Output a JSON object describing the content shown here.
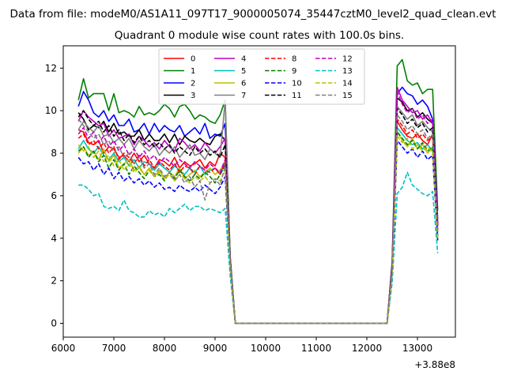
{
  "chart_data": {
    "type": "line",
    "suptitle": "Data from file: modeM0/AS1A11_097T17_9000005074_35447cztM0_level2_quad_clean.evt",
    "title": "Quadrant 0 module wise count rates with 100.0s bins.",
    "xlabel": "",
    "ylabel": "",
    "x_offset_label": "+3.88e8",
    "xlim": [
      6000,
      13750
    ],
    "ylim": [
      -0.65,
      13.05
    ],
    "x_ticks": [
      6000,
      7000,
      8000,
      9000,
      10000,
      11000,
      12000,
      13000
    ],
    "y_ticks": [
      0,
      2,
      4,
      6,
      8,
      10,
      12
    ],
    "x": [
      6300,
      6400,
      6500,
      6600,
      6700,
      6800,
      6900,
      7000,
      7100,
      7200,
      7300,
      7400,
      7500,
      7600,
      7700,
      7800,
      7900,
      8000,
      8100,
      8200,
      8300,
      8400,
      8500,
      8600,
      8700,
      8800,
      8900,
      9000,
      9100,
      9200,
      9300,
      9400,
      9500,
      9600,
      9700,
      9800,
      9900,
      10000,
      10100,
      10200,
      10300,
      10400,
      10500,
      10600,
      10700,
      10800,
      10900,
      11000,
      11100,
      11200,
      11300,
      11400,
      11500,
      11600,
      11700,
      11800,
      11900,
      12000,
      12100,
      12200,
      12300,
      12400,
      12500,
      12600,
      12700,
      12800,
      12900,
      13000,
      13100,
      13200,
      13300,
      13400
    ],
    "legend": {
      "location": "upper center",
      "columns": 4
    },
    "series": [
      {
        "name": "0",
        "color": "#ff0000",
        "dash": "solid",
        "values": [
          9.1,
          9.0,
          8.5,
          8.4,
          8.6,
          8.0,
          8.3,
          8.2,
          7.8,
          7.9,
          7.6,
          8.0,
          7.6,
          7.9,
          7.5,
          7.3,
          7.7,
          7.6,
          7.4,
          7.8,
          7.3,
          7.6,
          7.4,
          7.5,
          7.7,
          7.3,
          7.6,
          7.4,
          8.0,
          7.8,
          2.9,
          0,
          0,
          0,
          0,
          0,
          0,
          0,
          0,
          0,
          0,
          0,
          0,
          0,
          0,
          0,
          0,
          0,
          0,
          0,
          0,
          0,
          0,
          0,
          0,
          0,
          0,
          0,
          0,
          0,
          0,
          0,
          2.5,
          9.5,
          9.1,
          8.8,
          8.7,
          8.9,
          8.6,
          8.4,
          8.9,
          4.3
        ]
      },
      {
        "name": "1",
        "color": "#008000",
        "dash": "solid",
        "values": [
          10.5,
          11.5,
          10.6,
          10.8,
          10.8,
          10.8,
          10.0,
          10.8,
          9.9,
          10.0,
          9.9,
          9.7,
          10.2,
          9.8,
          9.9,
          9.8,
          10.0,
          10.3,
          10.1,
          9.7,
          10.2,
          10.3,
          10.0,
          9.6,
          9.8,
          9.7,
          9.5,
          9.4,
          9.8,
          10.5,
          3.1,
          0,
          0,
          0,
          0,
          0,
          0,
          0,
          0,
          0,
          0,
          0,
          0,
          0,
          0,
          0,
          0,
          0,
          0,
          0,
          0,
          0,
          0,
          0,
          0,
          0,
          0,
          0,
          0,
          0,
          0,
          0,
          2.9,
          12.1,
          12.4,
          11.4,
          11.2,
          11.3,
          10.8,
          11.0,
          11.0,
          5.3
        ]
      },
      {
        "name": "2",
        "color": "#0000ff",
        "dash": "solid",
        "values": [
          10.2,
          10.9,
          10.5,
          9.9,
          9.7,
          10.0,
          9.5,
          9.8,
          9.3,
          9.3,
          9.6,
          9.0,
          9.1,
          9.4,
          8.9,
          9.4,
          9.0,
          9.3,
          9.1,
          9.0,
          9.3,
          8.8,
          9.0,
          9.2,
          8.9,
          9.4,
          8.7,
          8.9,
          8.8,
          9.4,
          3.1,
          0,
          0,
          0,
          0,
          0,
          0,
          0,
          0,
          0,
          0,
          0,
          0,
          0,
          0,
          0,
          0,
          0,
          0,
          0,
          0,
          0,
          0,
          0,
          0,
          0,
          0,
          0,
          0,
          0,
          0,
          0,
          2.8,
          10.8,
          11.1,
          10.8,
          10.7,
          10.3,
          10.5,
          10.2,
          9.6,
          4.9
        ]
      },
      {
        "name": "3",
        "color": "#000000",
        "dash": "solid",
        "values": [
          9.9,
          9.6,
          9.1,
          9.3,
          9.2,
          9.5,
          9.0,
          9.4,
          8.9,
          9.0,
          8.8,
          8.8,
          9.1,
          8.6,
          8.9,
          8.6,
          8.6,
          8.9,
          8.5,
          8.9,
          8.4,
          8.8,
          8.6,
          8.5,
          8.7,
          8.5,
          8.4,
          8.8,
          8.9,
          8.6,
          2.9,
          0,
          0,
          0,
          0,
          0,
          0,
          0,
          0,
          0,
          0,
          0,
          0,
          0,
          0,
          0,
          0,
          0,
          0,
          0,
          0,
          0,
          0,
          0,
          0,
          0,
          0,
          0,
          0,
          0,
          0,
          0,
          2.6,
          10.6,
          10.4,
          10.0,
          10.1,
          9.7,
          9.9,
          9.6,
          9.4,
          4.6
        ]
      },
      {
        "name": "4",
        "color": "#bf00bf",
        "dash": "solid",
        "values": [
          9.5,
          10.0,
          9.7,
          9.5,
          9.3,
          9.4,
          8.8,
          9.1,
          8.7,
          8.8,
          8.9,
          8.4,
          8.8,
          8.6,
          8.3,
          8.5,
          8.2,
          8.6,
          8.3,
          8.1,
          8.7,
          8.5,
          8.2,
          8.4,
          8.1,
          8.5,
          8.2,
          8.0,
          8.3,
          8.7,
          2.9,
          0,
          0,
          0,
          0,
          0,
          0,
          0,
          0,
          0,
          0,
          0,
          0,
          0,
          0,
          0,
          0,
          0,
          0,
          0,
          0,
          0,
          0,
          0,
          0,
          0,
          0,
          0,
          0,
          0,
          0,
          0,
          2.7,
          11.1,
          10.5,
          10.2,
          9.9,
          10.0,
          9.6,
          9.8,
          9.4,
          4.7
        ]
      },
      {
        "name": "5",
        "color": "#00bfbf",
        "dash": "solid",
        "values": [
          8.2,
          8.6,
          8.2,
          8.0,
          8.3,
          7.9,
          7.7,
          8.0,
          7.6,
          7.8,
          7.4,
          7.7,
          7.3,
          7.6,
          7.5,
          7.2,
          7.5,
          7.3,
          7.1,
          7.4,
          7.2,
          7.0,
          7.3,
          7.1,
          7.4,
          7.0,
          7.2,
          7.3,
          7.0,
          7.5,
          2.8,
          0,
          0,
          0,
          0,
          0,
          0,
          0,
          0,
          0,
          0,
          0,
          0,
          0,
          0,
          0,
          0,
          0,
          0,
          0,
          0,
          0,
          0,
          0,
          0,
          0,
          0,
          0,
          0,
          0,
          0,
          0,
          2.4,
          9.2,
          8.9,
          8.6,
          8.4,
          8.5,
          8.2,
          8.4,
          8.1,
          4.1
        ]
      },
      {
        "name": "6",
        "color": "#bfbf00",
        "dash": "solid",
        "values": [
          8.0,
          8.3,
          7.9,
          8.1,
          7.7,
          8.2,
          7.6,
          7.9,
          7.3,
          7.5,
          7.7,
          7.2,
          7.4,
          7.0,
          7.3,
          6.9,
          7.2,
          6.8,
          7.1,
          6.9,
          7.3,
          6.8,
          7.0,
          7.2,
          6.9,
          7.1,
          7.3,
          7.0,
          7.2,
          7.6,
          2.7,
          0,
          0,
          0,
          0,
          0,
          0,
          0,
          0,
          0,
          0,
          0,
          0,
          0,
          0,
          0,
          0,
          0,
          0,
          0,
          0,
          0,
          0,
          0,
          0,
          0,
          0,
          0,
          0,
          0,
          0,
          0,
          2.3,
          9.0,
          8.6,
          8.3,
          8.7,
          8.2,
          8.4,
          8.0,
          8.3,
          4.0
        ]
      },
      {
        "name": "7",
        "color": "#808080",
        "dash": "solid",
        "values": [
          9.1,
          9.5,
          9.2,
          9.0,
          9.3,
          8.8,
          8.9,
          8.5,
          8.7,
          8.4,
          8.7,
          8.2,
          8.6,
          8.3,
          8.1,
          8.4,
          7.9,
          8.2,
          8.0,
          8.3,
          7.8,
          8.1,
          8.4,
          7.9,
          8.0,
          7.7,
          8.2,
          8.0,
          7.8,
          10.5,
          3.0,
          0,
          0,
          0,
          0,
          0,
          0,
          0,
          0,
          0,
          0,
          0,
          0,
          0,
          0,
          0,
          0,
          0,
          0,
          0,
          0,
          0,
          0,
          0,
          0,
          0,
          0,
          0,
          0,
          0,
          0,
          0,
          2.6,
          10.2,
          9.9,
          9.6,
          9.8,
          9.3,
          9.5,
          9.2,
          9.0,
          4.5
        ]
      },
      {
        "name": "8",
        "color": "#ff0000",
        "dash": "dashed",
        "values": [
          8.7,
          8.9,
          8.4,
          8.6,
          8.2,
          8.5,
          8.0,
          8.3,
          7.7,
          8.0,
          7.8,
          7.5,
          7.9,
          7.4,
          7.7,
          7.3,
          7.6,
          7.4,
          7.2,
          7.5,
          7.1,
          7.4,
          7.3,
          7.0,
          7.4,
          7.2,
          7.1,
          7.3,
          7.0,
          7.6,
          2.8,
          0,
          0,
          0,
          0,
          0,
          0,
          0,
          0,
          0,
          0,
          0,
          0,
          0,
          0,
          0,
          0,
          0,
          0,
          0,
          0,
          0,
          0,
          0,
          0,
          0,
          0,
          0,
          0,
          0,
          0,
          0,
          2.5,
          9.6,
          9.3,
          8.9,
          9.1,
          8.7,
          8.9,
          8.6,
          8.8,
          4.4
        ]
      },
      {
        "name": "9",
        "color": "#008000",
        "dash": "dashed",
        "values": [
          8.1,
          8.3,
          7.8,
          8.1,
          7.6,
          7.9,
          7.3,
          7.7,
          7.2,
          7.5,
          7.0,
          7.4,
          7.1,
          6.8,
          7.2,
          6.9,
          7.0,
          6.7,
          7.1,
          6.8,
          7.2,
          6.9,
          6.7,
          7.0,
          6.8,
          7.1,
          6.9,
          6.6,
          7.0,
          7.4,
          2.7,
          0,
          0,
          0,
          0,
          0,
          0,
          0,
          0,
          0,
          0,
          0,
          0,
          0,
          0,
          0,
          0,
          0,
          0,
          0,
          0,
          0,
          0,
          0,
          0,
          0,
          0,
          0,
          0,
          0,
          0,
          0,
          2.3,
          9.0,
          8.7,
          8.4,
          8.6,
          8.2,
          8.5,
          8.1,
          8.3,
          4.1
        ]
      },
      {
        "name": "10",
        "color": "#0000ff",
        "dash": "dashed",
        "values": [
          7.8,
          7.5,
          7.6,
          7.2,
          7.5,
          7.0,
          7.3,
          6.8,
          7.1,
          6.7,
          6.9,
          6.6,
          6.8,
          6.5,
          6.7,
          6.4,
          6.6,
          6.3,
          6.4,
          6.2,
          6.5,
          6.3,
          6.2,
          6.4,
          6.2,
          6.5,
          6.3,
          6.1,
          6.4,
          6.9,
          2.6,
          0,
          0,
          0,
          0,
          0,
          0,
          0,
          0,
          0,
          0,
          0,
          0,
          0,
          0,
          0,
          0,
          0,
          0,
          0,
          0,
          0,
          0,
          0,
          0,
          0,
          0,
          0,
          0,
          0,
          0,
          0,
          2.2,
          8.6,
          8.3,
          8.0,
          8.2,
          7.8,
          8.1,
          7.7,
          7.9,
          3.9
        ]
      },
      {
        "name": "11",
        "color": "#000000",
        "dash": "dashed",
        "values": [
          9.7,
          10.0,
          9.6,
          9.3,
          9.5,
          9.0,
          9.3,
          8.8,
          9.1,
          8.6,
          8.9,
          8.5,
          8.8,
          8.4,
          8.6,
          8.3,
          8.5,
          8.2,
          8.4,
          8.0,
          8.3,
          8.1,
          7.9,
          8.3,
          8.0,
          8.2,
          7.9,
          8.1,
          7.8,
          8.4,
          2.9,
          0,
          0,
          0,
          0,
          0,
          0,
          0,
          0,
          0,
          0,
          0,
          0,
          0,
          0,
          0,
          0,
          0,
          0,
          0,
          0,
          0,
          0,
          0,
          0,
          0,
          0,
          0,
          0,
          0,
          0,
          0,
          2.6,
          10.1,
          9.8,
          9.4,
          9.6,
          9.2,
          9.4,
          9.0,
          9.2,
          4.6
        ]
      },
      {
        "name": "12",
        "color": "#bf00bf",
        "dash": "dashed",
        "values": [
          8.9,
          9.2,
          8.7,
          9.0,
          8.5,
          8.8,
          8.3,
          8.6,
          8.1,
          8.4,
          7.9,
          8.2,
          7.8,
          8.1,
          7.7,
          7.9,
          7.5,
          7.8,
          7.6,
          7.4,
          7.7,
          7.5,
          7.3,
          7.6,
          7.4,
          7.2,
          7.5,
          7.3,
          7.1,
          7.7,
          2.8,
          0,
          0,
          0,
          0,
          0,
          0,
          0,
          0,
          0,
          0,
          0,
          0,
          0,
          0,
          0,
          0,
          0,
          0,
          0,
          0,
          0,
          0,
          0,
          0,
          0,
          0,
          0,
          0,
          0,
          0,
          0,
          2.5,
          10.9,
          10.3,
          9.9,
          10.1,
          9.6,
          9.8,
          9.4,
          9.6,
          4.6
        ]
      },
      {
        "name": "13",
        "color": "#00bfbf",
        "dash": "dashed",
        "values": [
          6.5,
          6.5,
          6.3,
          6.0,
          6.1,
          5.5,
          5.4,
          5.5,
          5.3,
          5.8,
          5.3,
          5.2,
          5.0,
          5.0,
          5.3,
          5.1,
          5.2,
          5.0,
          5.4,
          5.2,
          5.4,
          5.6,
          5.3,
          5.5,
          5.5,
          5.3,
          5.4,
          5.3,
          5.2,
          5.4,
          2.2,
          0,
          0,
          0,
          0,
          0,
          0,
          0,
          0,
          0,
          0,
          0,
          0,
          0,
          0,
          0,
          0,
          0,
          0,
          0,
          0,
          0,
          0,
          0,
          0,
          0,
          0,
          0,
          0,
          0,
          0,
          0,
          1.9,
          6.1,
          6.4,
          7.1,
          6.5,
          6.3,
          6.1,
          6.0,
          6.2,
          3.3
        ]
      },
      {
        "name": "14",
        "color": "#bfbf00",
        "dash": "dashed",
        "values": [
          8.4,
          8.1,
          8.3,
          7.8,
          8.1,
          7.6,
          7.9,
          7.4,
          7.7,
          7.2,
          7.5,
          7.1,
          7.3,
          7.0,
          7.2,
          6.9,
          7.1,
          6.8,
          7.0,
          6.7,
          7.0,
          6.8,
          6.6,
          6.9,
          6.7,
          6.9,
          6.6,
          6.8,
          6.7,
          7.2,
          2.7,
          0,
          0,
          0,
          0,
          0,
          0,
          0,
          0,
          0,
          0,
          0,
          0,
          0,
          0,
          0,
          0,
          0,
          0,
          0,
          0,
          0,
          0,
          0,
          0,
          0,
          0,
          0,
          0,
          0,
          0,
          0,
          2.3,
          8.8,
          8.5,
          8.7,
          8.2,
          8.4,
          8.1,
          8.3,
          8.0,
          4.0
        ]
      },
      {
        "name": "15",
        "color": "#808080",
        "dash": "dashed",
        "values": [
          9.6,
          9.3,
          9.0,
          8.7,
          8.9,
          8.4,
          8.6,
          8.0,
          8.3,
          7.8,
          8.0,
          7.5,
          7.8,
          7.3,
          7.5,
          7.0,
          7.3,
          6.9,
          7.1,
          6.7,
          7.0,
          6.6,
          6.9,
          6.4,
          6.7,
          5.8,
          6.6,
          6.8,
          6.5,
          7.4,
          2.7,
          0,
          0,
          0,
          0,
          0,
          0,
          0,
          0,
          0,
          0,
          0,
          0,
          0,
          0,
          0,
          0,
          0,
          0,
          0,
          0,
          0,
          0,
          0,
          0,
          0,
          0,
          0,
          0,
          0,
          0,
          0,
          2.4,
          9.8,
          9.5,
          9.1,
          9.3,
          8.9,
          9.1,
          8.7,
          8.9,
          4.3
        ]
      }
    ]
  }
}
